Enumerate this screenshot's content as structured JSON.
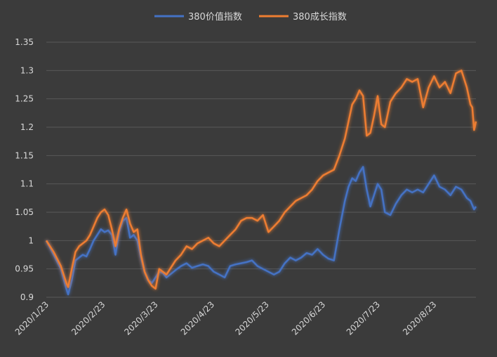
{
  "chart_data": {
    "type": "line",
    "title": "",
    "xlabel": "",
    "ylabel": "",
    "ylim": [
      0.9,
      1.35
    ],
    "yticks": [
      "0.9",
      "0.95",
      "1",
      "1.05",
      "1.1",
      "1.15",
      "1.2",
      "1.25",
      "1.3",
      "1.35"
    ],
    "ytick_values": [
      0.9,
      0.95,
      1.0,
      1.05,
      1.1,
      1.15,
      1.2,
      1.25,
      1.3,
      1.35
    ],
    "xticks": [
      "2020/1/23",
      "2020/2/23",
      "2020/3/23",
      "2020/4/23",
      "2020/5/23",
      "2020/6/23",
      "2020/7/23",
      "2020/8/23"
    ],
    "xtick_dates": [
      "2020-01-23",
      "2020-02-23",
      "2020-03-23",
      "2020-04-23",
      "2020-05-23",
      "2020-06-23",
      "2020-07-23",
      "2020-08-23"
    ],
    "grid": "horizontal",
    "legend_position": "top-center",
    "series": [
      {
        "name": "380价值指数",
        "color": "#4472c4",
        "points": [
          [
            "2020-01-23",
            1.0
          ],
          [
            "2020-01-27",
            0.975
          ],
          [
            "2020-01-31",
            0.95
          ],
          [
            "2020-02-03",
            0.915
          ],
          [
            "2020-02-04",
            0.905
          ],
          [
            "2020-02-06",
            0.93
          ],
          [
            "2020-02-08",
            0.965
          ],
          [
            "2020-02-10",
            0.97
          ],
          [
            "2020-02-12",
            0.975
          ],
          [
            "2020-02-14",
            0.972
          ],
          [
            "2020-02-16",
            0.985
          ],
          [
            "2020-02-18",
            1.0
          ],
          [
            "2020-02-20",
            1.01
          ],
          [
            "2020-02-22",
            1.02
          ],
          [
            "2020-02-24",
            1.015
          ],
          [
            "2020-02-26",
            1.018
          ],
          [
            "2020-02-28",
            1.01
          ],
          [
            "2020-03-01",
            0.975
          ],
          [
            "2020-03-03",
            1.015
          ],
          [
            "2020-03-05",
            1.035
          ],
          [
            "2020-03-07",
            1.04
          ],
          [
            "2020-03-09",
            1.005
          ],
          [
            "2020-03-11",
            1.01
          ],
          [
            "2020-03-13",
            1.0
          ],
          [
            "2020-03-15",
            0.97
          ],
          [
            "2020-03-17",
            0.945
          ],
          [
            "2020-03-19",
            0.93
          ],
          [
            "2020-03-21",
            0.925
          ],
          [
            "2020-03-23",
            0.935
          ],
          [
            "2020-03-25",
            0.945
          ],
          [
            "2020-03-27",
            0.943
          ],
          [
            "2020-03-29",
            0.935
          ],
          [
            "2020-03-31",
            0.94
          ],
          [
            "2020-04-03",
            0.948
          ],
          [
            "2020-04-06",
            0.955
          ],
          [
            "2020-04-09",
            0.96
          ],
          [
            "2020-04-12",
            0.952
          ],
          [
            "2020-04-15",
            0.955
          ],
          [
            "2020-04-18",
            0.958
          ],
          [
            "2020-04-21",
            0.955
          ],
          [
            "2020-04-24",
            0.945
          ],
          [
            "2020-04-27",
            0.94
          ],
          [
            "2020-04-30",
            0.935
          ],
          [
            "2020-05-03",
            0.955
          ],
          [
            "2020-05-06",
            0.958
          ],
          [
            "2020-05-09",
            0.96
          ],
          [
            "2020-05-12",
            0.962
          ],
          [
            "2020-05-15",
            0.965
          ],
          [
            "2020-05-18",
            0.955
          ],
          [
            "2020-05-21",
            0.95
          ],
          [
            "2020-05-24",
            0.945
          ],
          [
            "2020-05-27",
            0.94
          ],
          [
            "2020-05-30",
            0.945
          ],
          [
            "2020-06-02",
            0.96
          ],
          [
            "2020-06-05",
            0.97
          ],
          [
            "2020-06-08",
            0.965
          ],
          [
            "2020-06-11",
            0.97
          ],
          [
            "2020-06-14",
            0.978
          ],
          [
            "2020-06-17",
            0.975
          ],
          [
            "2020-06-20",
            0.985
          ],
          [
            "2020-06-23",
            0.975
          ],
          [
            "2020-06-26",
            0.968
          ],
          [
            "2020-06-29",
            0.965
          ],
          [
            "2020-07-02",
            1.02
          ],
          [
            "2020-07-05",
            1.07
          ],
          [
            "2020-07-07",
            1.095
          ],
          [
            "2020-07-09",
            1.11
          ],
          [
            "2020-07-11",
            1.105
          ],
          [
            "2020-07-13",
            1.12
          ],
          [
            "2020-07-15",
            1.13
          ],
          [
            "2020-07-17",
            1.09
          ],
          [
            "2020-07-19",
            1.06
          ],
          [
            "2020-07-21",
            1.08
          ],
          [
            "2020-07-23",
            1.1
          ],
          [
            "2020-07-25",
            1.09
          ],
          [
            "2020-07-27",
            1.05
          ],
          [
            "2020-07-30",
            1.045
          ],
          [
            "2020-08-02",
            1.065
          ],
          [
            "2020-08-05",
            1.08
          ],
          [
            "2020-08-08",
            1.09
          ],
          [
            "2020-08-11",
            1.085
          ],
          [
            "2020-08-14",
            1.09
          ],
          [
            "2020-08-17",
            1.085
          ],
          [
            "2020-08-20",
            1.1
          ],
          [
            "2020-08-23",
            1.115
          ],
          [
            "2020-08-26",
            1.095
          ],
          [
            "2020-08-29",
            1.09
          ],
          [
            "2020-09-01",
            1.08
          ],
          [
            "2020-09-04",
            1.095
          ],
          [
            "2020-09-07",
            1.09
          ],
          [
            "2020-09-10",
            1.075
          ],
          [
            "2020-09-12",
            1.07
          ],
          [
            "2020-09-14",
            1.055
          ],
          [
            "2020-09-15",
            1.06
          ]
        ]
      },
      {
        "name": "380成长指数",
        "color": "#ed7d31",
        "points": [
          [
            "2020-01-23",
            1.0
          ],
          [
            "2020-01-27",
            0.98
          ],
          [
            "2020-01-31",
            0.955
          ],
          [
            "2020-02-03",
            0.925
          ],
          [
            "2020-02-04",
            0.918
          ],
          [
            "2020-02-06",
            0.95
          ],
          [
            "2020-02-08",
            0.98
          ],
          [
            "2020-02-10",
            0.99
          ],
          [
            "2020-02-12",
            0.995
          ],
          [
            "2020-02-14",
            1.0
          ],
          [
            "2020-02-16",
            1.01
          ],
          [
            "2020-02-18",
            1.025
          ],
          [
            "2020-02-20",
            1.04
          ],
          [
            "2020-02-22",
            1.05
          ],
          [
            "2020-02-24",
            1.055
          ],
          [
            "2020-02-26",
            1.045
          ],
          [
            "2020-02-28",
            1.02
          ],
          [
            "2020-03-01",
            0.99
          ],
          [
            "2020-03-03",
            1.02
          ],
          [
            "2020-03-05",
            1.04
          ],
          [
            "2020-03-07",
            1.055
          ],
          [
            "2020-03-09",
            1.03
          ],
          [
            "2020-03-11",
            1.015
          ],
          [
            "2020-03-13",
            1.02
          ],
          [
            "2020-03-15",
            0.975
          ],
          [
            "2020-03-17",
            0.945
          ],
          [
            "2020-03-19",
            0.93
          ],
          [
            "2020-03-21",
            0.92
          ],
          [
            "2020-03-23",
            0.915
          ],
          [
            "2020-03-25",
            0.95
          ],
          [
            "2020-03-27",
            0.945
          ],
          [
            "2020-03-29",
            0.94
          ],
          [
            "2020-03-31",
            0.95
          ],
          [
            "2020-04-03",
            0.965
          ],
          [
            "2020-04-06",
            0.975
          ],
          [
            "2020-04-09",
            0.99
          ],
          [
            "2020-04-12",
            0.985
          ],
          [
            "2020-04-15",
            0.995
          ],
          [
            "2020-04-18",
            1.0
          ],
          [
            "2020-04-21",
            1.005
          ],
          [
            "2020-04-24",
            0.995
          ],
          [
            "2020-04-27",
            0.99
          ],
          [
            "2020-04-30",
            1.0
          ],
          [
            "2020-05-03",
            1.01
          ],
          [
            "2020-05-06",
            1.02
          ],
          [
            "2020-05-09",
            1.035
          ],
          [
            "2020-05-12",
            1.04
          ],
          [
            "2020-05-15",
            1.04
          ],
          [
            "2020-05-18",
            1.035
          ],
          [
            "2020-05-21",
            1.045
          ],
          [
            "2020-05-24",
            1.015
          ],
          [
            "2020-05-27",
            1.025
          ],
          [
            "2020-05-30",
            1.035
          ],
          [
            "2020-06-02",
            1.05
          ],
          [
            "2020-06-05",
            1.06
          ],
          [
            "2020-06-08",
            1.07
          ],
          [
            "2020-06-11",
            1.075
          ],
          [
            "2020-06-14",
            1.08
          ],
          [
            "2020-06-17",
            1.09
          ],
          [
            "2020-06-20",
            1.105
          ],
          [
            "2020-06-23",
            1.115
          ],
          [
            "2020-06-26",
            1.12
          ],
          [
            "2020-06-29",
            1.125
          ],
          [
            "2020-07-02",
            1.15
          ],
          [
            "2020-07-05",
            1.18
          ],
          [
            "2020-07-07",
            1.21
          ],
          [
            "2020-07-09",
            1.24
          ],
          [
            "2020-07-11",
            1.25
          ],
          [
            "2020-07-13",
            1.265
          ],
          [
            "2020-07-15",
            1.255
          ],
          [
            "2020-07-17",
            1.185
          ],
          [
            "2020-07-19",
            1.19
          ],
          [
            "2020-07-21",
            1.22
          ],
          [
            "2020-07-23",
            1.255
          ],
          [
            "2020-07-25",
            1.205
          ],
          [
            "2020-07-27",
            1.2
          ],
          [
            "2020-07-30",
            1.245
          ],
          [
            "2020-08-02",
            1.26
          ],
          [
            "2020-08-05",
            1.27
          ],
          [
            "2020-08-08",
            1.285
          ],
          [
            "2020-08-11",
            1.28
          ],
          [
            "2020-08-14",
            1.285
          ],
          [
            "2020-08-17",
            1.235
          ],
          [
            "2020-08-20",
            1.27
          ],
          [
            "2020-08-23",
            1.29
          ],
          [
            "2020-08-26",
            1.27
          ],
          [
            "2020-08-29",
            1.28
          ],
          [
            "2020-09-01",
            1.26
          ],
          [
            "2020-09-04",
            1.295
          ],
          [
            "2020-09-07",
            1.3
          ],
          [
            "2020-09-10",
            1.27
          ],
          [
            "2020-09-12",
            1.24
          ],
          [
            "2020-09-13",
            1.235
          ],
          [
            "2020-09-14",
            1.195
          ],
          [
            "2020-09-15",
            1.21
          ]
        ]
      }
    ]
  },
  "colors": {
    "background": "#3b3b3b",
    "gridline": "#595959",
    "text": "#d9d9d9"
  }
}
